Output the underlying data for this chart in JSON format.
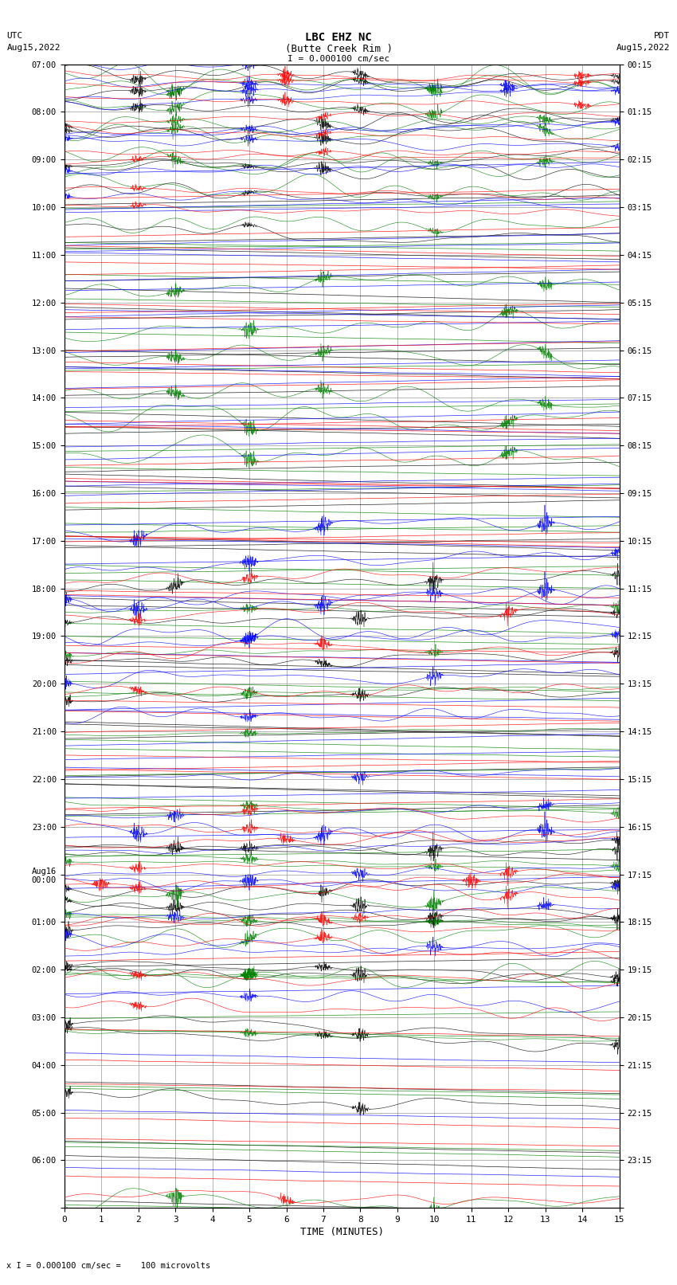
{
  "title_line1": "LBC EHZ NC",
  "title_line2": "(Butte Creek Rim )",
  "scale_text": "I = 0.000100 cm/sec",
  "left_label_top": "UTC",
  "left_label_date": "Aug15,2022",
  "right_label_top": "PDT",
  "right_label_date": "Aug15,2022",
  "bottom_label": "TIME (MINUTES)",
  "footer_text": "x I = 0.000100 cm/sec =    100 microvolts",
  "xlabel_ticks": [
    0,
    1,
    2,
    3,
    4,
    5,
    6,
    7,
    8,
    9,
    10,
    11,
    12,
    13,
    14,
    15
  ],
  "left_times": [
    "07:00",
    "08:00",
    "09:00",
    "10:00",
    "11:00",
    "12:00",
    "13:00",
    "14:00",
    "15:00",
    "16:00",
    "17:00",
    "18:00",
    "19:00",
    "20:00",
    "21:00",
    "22:00",
    "23:00",
    "Aug16\n00:00",
    "01:00",
    "02:00",
    "03:00",
    "04:00",
    "05:00",
    "06:00",
    ""
  ],
  "right_times": [
    "00:15",
    "01:15",
    "02:15",
    "03:15",
    "04:15",
    "05:15",
    "06:15",
    "07:15",
    "08:15",
    "09:15",
    "10:15",
    "11:15",
    "12:15",
    "13:15",
    "14:15",
    "15:15",
    "16:15",
    "17:15",
    "18:15",
    "19:15",
    "20:15",
    "21:15",
    "22:15",
    "23:15",
    ""
  ],
  "n_rows": 24,
  "trace_duration_minutes": 15,
  "background_color": "#ffffff",
  "grid_color": "#999999",
  "colors": {
    "black": "#000000",
    "green": "#008000",
    "blue": "#0000ff",
    "red": "#ff0000"
  },
  "figsize": [
    8.5,
    16.13
  ],
  "dpi": 100,
  "channel_offsets": {
    "black": 0.0,
    "green": 0.0,
    "blue": 0.0,
    "red": 0.0
  }
}
